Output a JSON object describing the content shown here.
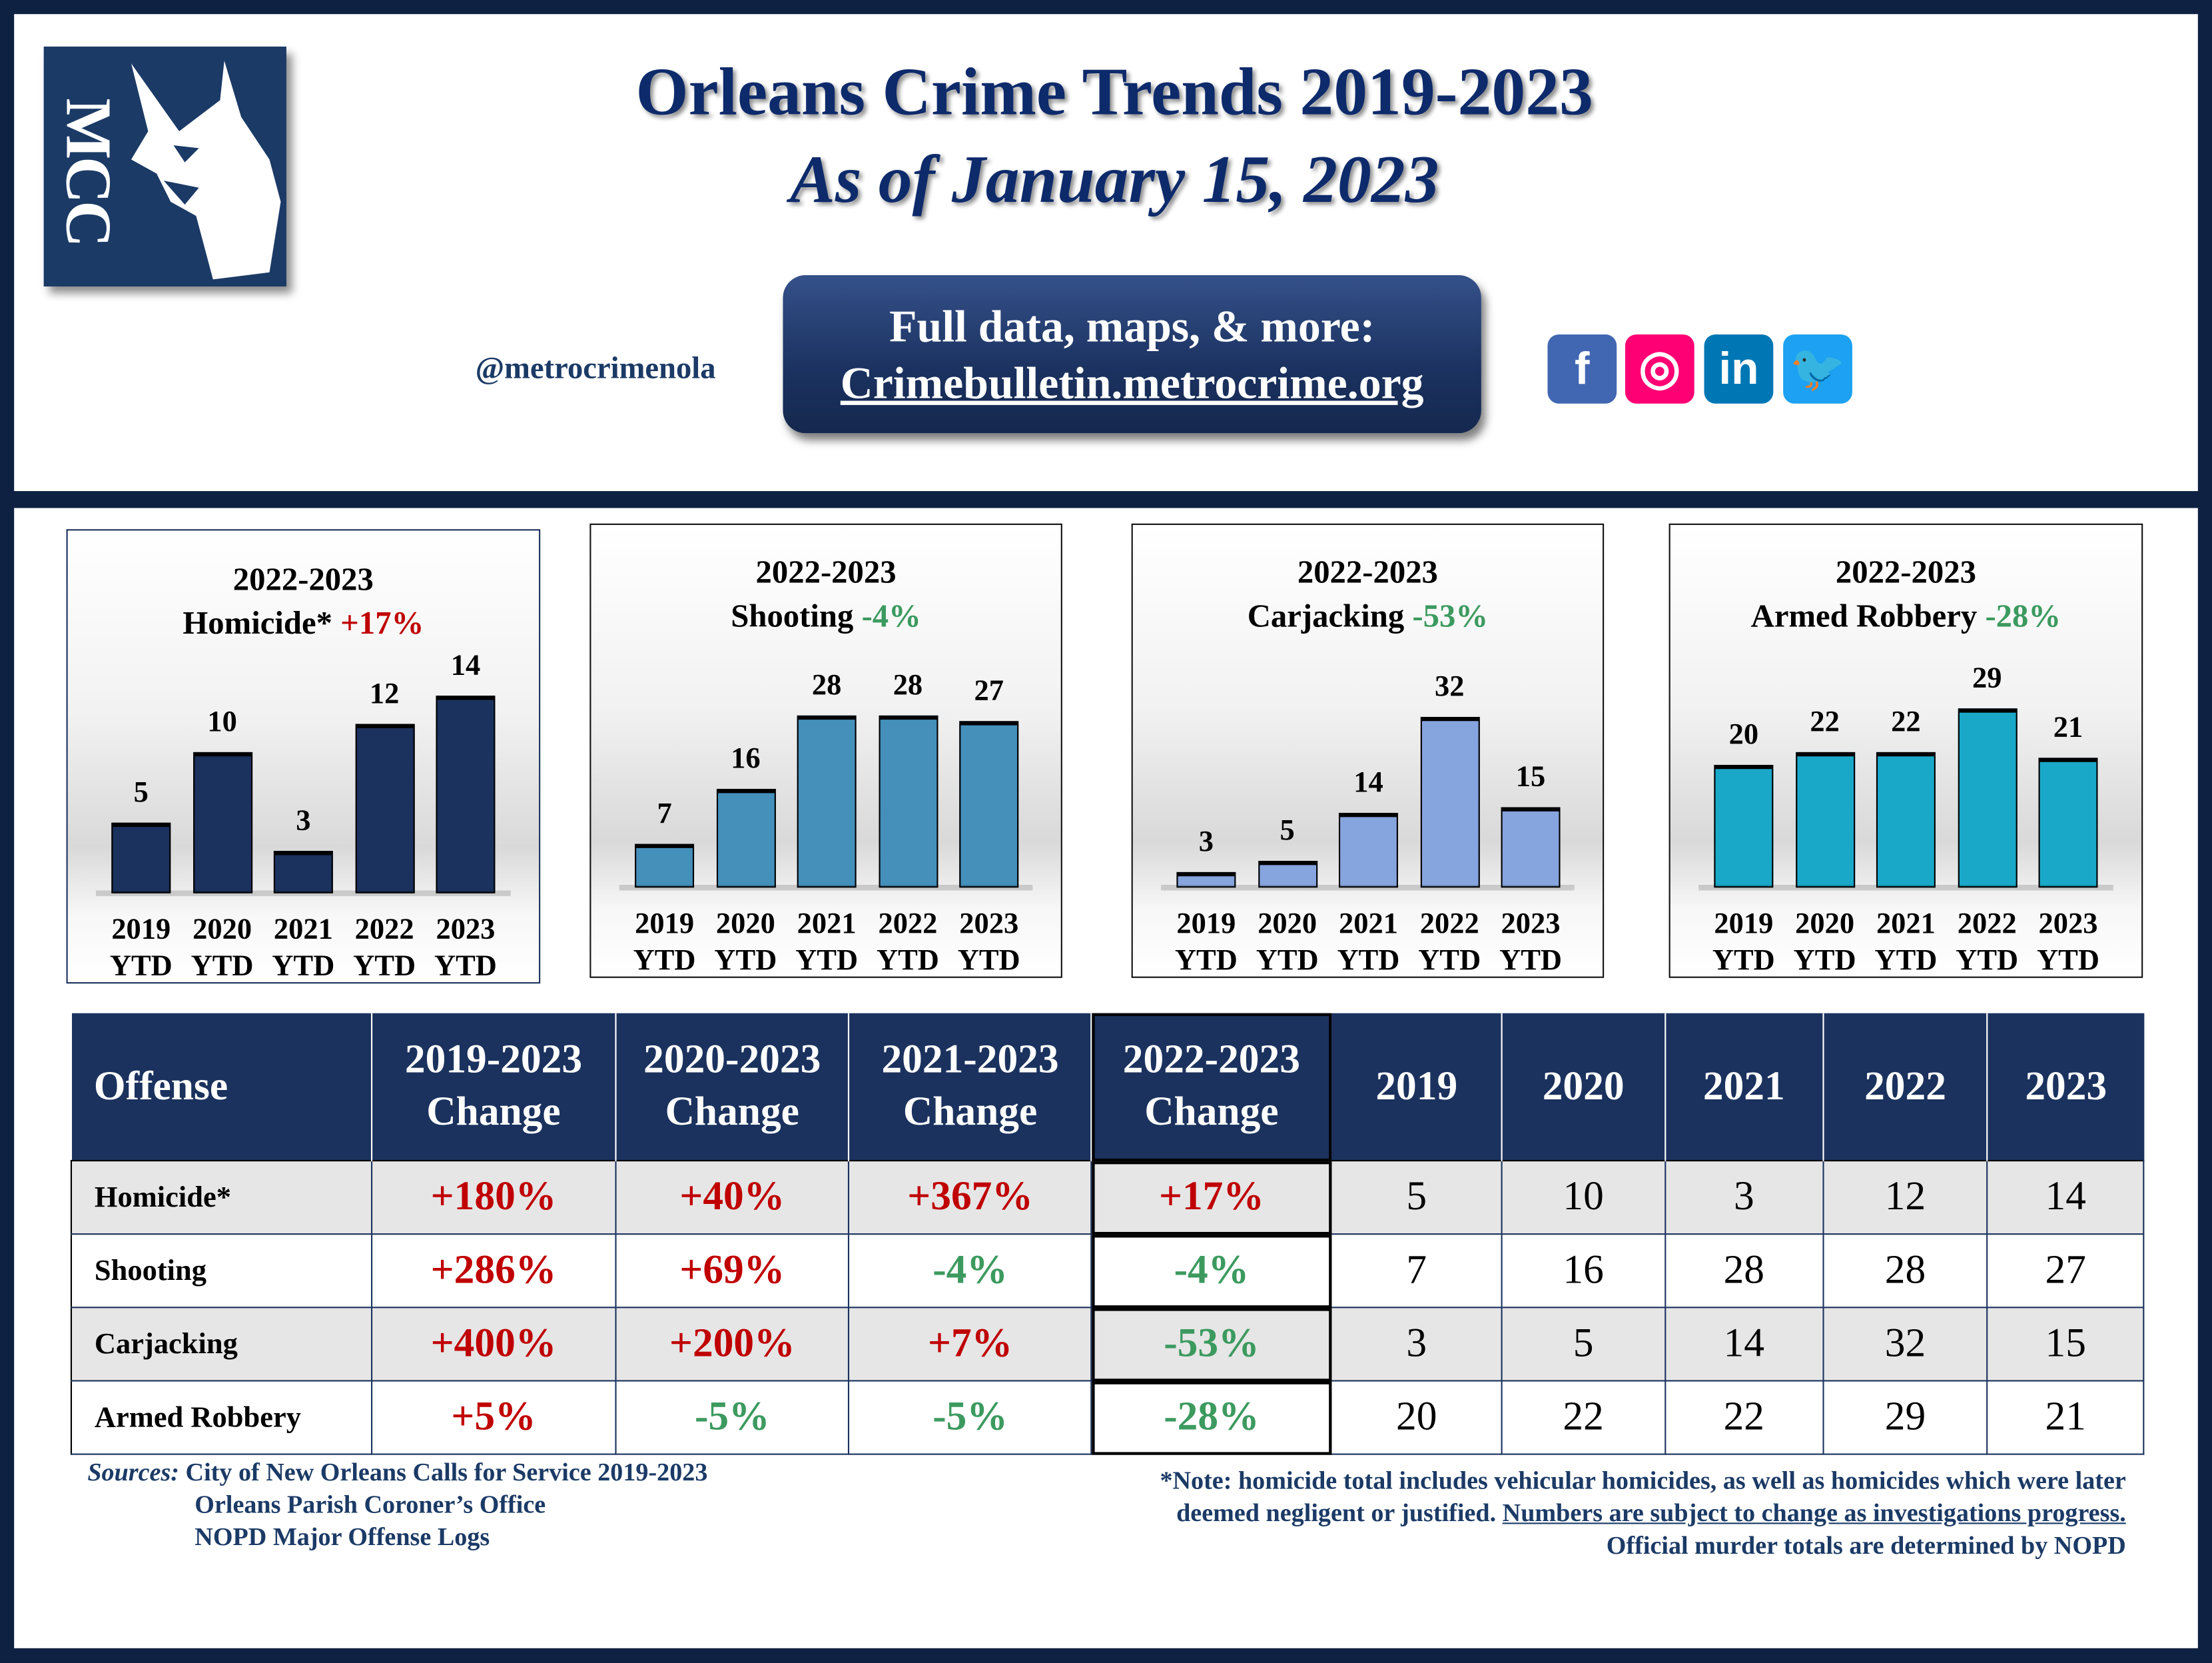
{
  "header": {
    "logo_text": "MCC",
    "title": "Orleans Crime Trends 2019-2023",
    "subtitle": "As of January 15, 2023",
    "handle": "@metrocrimenola",
    "link_button": {
      "line1": "Full data, maps, & more:",
      "url": "Crimebulletin.metrocrime.org"
    },
    "social": [
      {
        "icon": "facebook-icon",
        "glyph": "f",
        "color": "#4267b2"
      },
      {
        "icon": "instagram-icon",
        "glyph": "◎",
        "color": "#ff0074"
      },
      {
        "icon": "linkedin-icon",
        "glyph": "in",
        "color": "#0077b5"
      },
      {
        "icon": "twitter-icon",
        "glyph": "🐦",
        "color": "#1da1f2"
      }
    ]
  },
  "colors": {
    "navy": "#0f2142",
    "header_navy": "#1b325e",
    "increase": "#c00000",
    "decrease": "#3c9a5f"
  },
  "chart_data": [
    {
      "type": "bar",
      "title": "2022-2023",
      "offense": "Homicide*",
      "change": "+17%",
      "change_dir": "up",
      "color": "#1b325e",
      "categories": [
        "2019 YTD",
        "2020 YTD",
        "2021 YTD",
        "2022 YTD",
        "2023 YTD"
      ],
      "values": [
        5,
        10,
        3,
        12,
        14
      ],
      "ylim": [
        0,
        14
      ]
    },
    {
      "type": "bar",
      "title": "2022-2023",
      "offense": "Shooting",
      "change": "-4%",
      "change_dir": "down",
      "color": "#4490bb",
      "categories": [
        "2019 YTD",
        "2020 YTD",
        "2021 YTD",
        "2022 YTD",
        "2023 YTD"
      ],
      "values": [
        7,
        16,
        28,
        28,
        27
      ],
      "ylim": [
        0,
        32
      ]
    },
    {
      "type": "bar",
      "title": "2022-2023",
      "offense": "Carjacking",
      "change": "-53%",
      "change_dir": "down",
      "color": "#86a4de",
      "categories": [
        "2019 YTD",
        "2020 YTD",
        "2021 YTD",
        "2022 YTD",
        "2023 YTD"
      ],
      "values": [
        3,
        5,
        14,
        32,
        15
      ],
      "ylim": [
        0,
        37
      ]
    },
    {
      "type": "bar",
      "title": "2022-2023",
      "offense": "Armed Robbery",
      "change": "-28%",
      "change_dir": "down",
      "color": "#1aa8c9",
      "categories": [
        "2019 YTD",
        "2020 YTD",
        "2021 YTD",
        "2022 YTD",
        "2023 YTD"
      ],
      "values": [
        20,
        22,
        22,
        29,
        21
      ],
      "ylim": [
        0,
        32
      ]
    }
  ],
  "table": {
    "headers": [
      "Offense",
      "2019-2023 Change",
      "2020-2023 Change",
      "2021-2023 Change",
      "2022-2023 Change",
      "2019",
      "2020",
      "2021",
      "2022",
      "2023"
    ],
    "rows": [
      {
        "offense": "Homicide*",
        "changes": [
          "+180%",
          "+40%",
          "+367%",
          "+17%"
        ],
        "dirs": [
          "up",
          "up",
          "up",
          "up"
        ],
        "counts": [
          "5",
          "10",
          "3",
          "12",
          "14"
        ]
      },
      {
        "offense": "Shooting",
        "changes": [
          "+286%",
          "+69%",
          "-4%",
          "-4%"
        ],
        "dirs": [
          "up",
          "up",
          "down",
          "down"
        ],
        "counts": [
          "7",
          "16",
          "28",
          "28",
          "27"
        ]
      },
      {
        "offense": "Carjacking",
        "changes": [
          "+400%",
          "+200%",
          "+7%",
          "-53%"
        ],
        "dirs": [
          "up",
          "up",
          "up",
          "down"
        ],
        "counts": [
          "3",
          "5",
          "14",
          "32",
          "15"
        ]
      },
      {
        "offense": "Armed Robbery",
        "changes": [
          "+5%",
          "-5%",
          "-5%",
          "-28%"
        ],
        "dirs": [
          "up",
          "down",
          "down",
          "down"
        ],
        "counts": [
          "20",
          "22",
          "22",
          "29",
          "21"
        ]
      }
    ]
  },
  "footer": {
    "sources_label": "Sources:",
    "sources": [
      "City of New Orleans Calls for Service 2019-2023",
      "Orleans Parish Coroner’s Office",
      "NOPD Major Offense Logs"
    ],
    "note_line1": "*Note: homicide total includes vehicular homicides, as well as homicides which were later",
    "note_line2a": "deemed negligent or justified. ",
    "note_line2b": "Numbers are subject to change as investigations progress.",
    "note_line3": "Official murder totals are determined by NOPD"
  }
}
